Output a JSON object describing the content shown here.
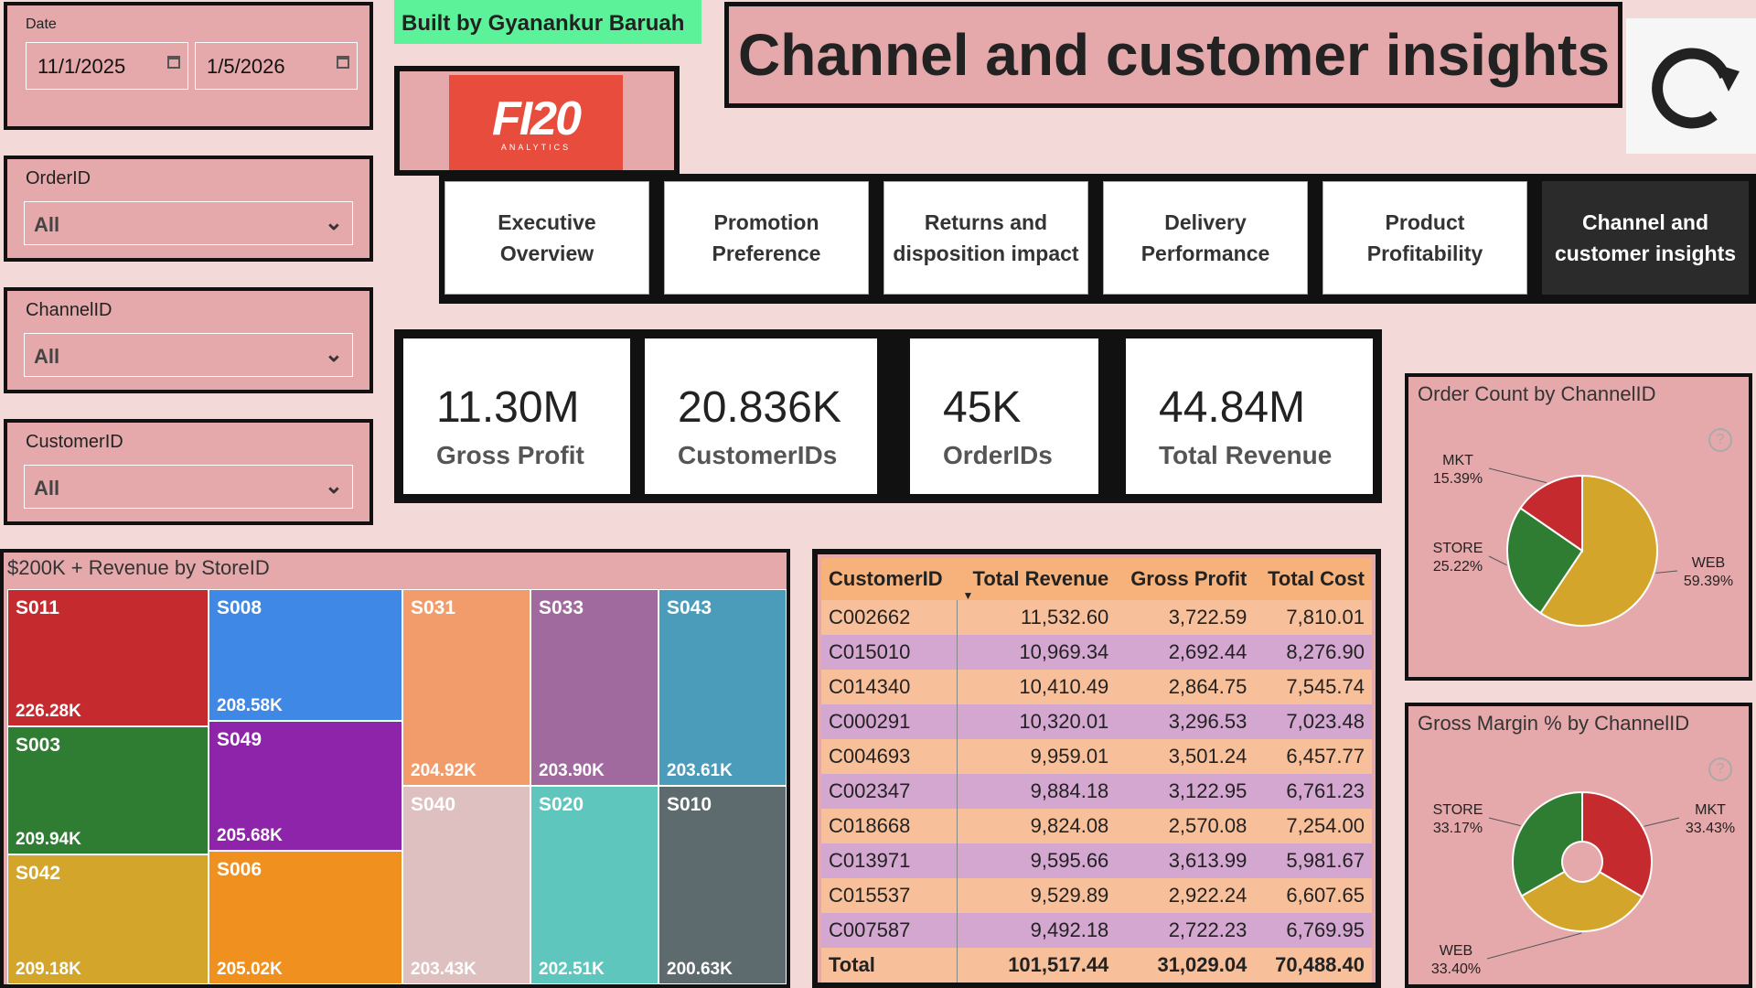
{
  "filters": {
    "date": {
      "label": "Date",
      "start": "11/1/2025",
      "end": "1/5/2026"
    },
    "order": {
      "label": "OrderID",
      "value": "All"
    },
    "channel": {
      "label": "ChannelID",
      "value": "All"
    },
    "customer": {
      "label": "CustomerID",
      "value": "All"
    }
  },
  "credit": "Built by Gyanankur Baruah",
  "logo": "FI20",
  "logo_sub": "ANALYTICS",
  "page_title": "Channel and customer insights",
  "nav": [
    {
      "label": "Executive Overview",
      "active": false
    },
    {
      "label": "Promotion Preference",
      "active": false
    },
    {
      "label": "Returns and disposition impact",
      "active": false
    },
    {
      "label": "Delivery Performance",
      "active": false
    },
    {
      "label": "Product Profitability",
      "active": false
    },
    {
      "label": "Channel and customer insights",
      "active": true
    }
  ],
  "kpis": [
    {
      "value": "11.30M",
      "label": "Gross Profit"
    },
    {
      "value": "20.836K",
      "label": "CustomerIDs"
    },
    {
      "value": "45K",
      "label": "OrderIDs"
    },
    {
      "value": "44.84M",
      "label": "Total Revenue"
    }
  ],
  "treemap": {
    "title": "$200K + Revenue by StoreID",
    "cells": [
      {
        "id": "S011",
        "val": "226.28K",
        "color": "#c52b2e"
      },
      {
        "id": "S003",
        "val": "209.94K",
        "color": "#2e7d32"
      },
      {
        "id": "S042",
        "val": "209.18K",
        "color": "#d4a52b"
      },
      {
        "id": "S008",
        "val": "208.58K",
        "color": "#3f88e5"
      },
      {
        "id": "S049",
        "val": "205.68K",
        "color": "#8e24aa"
      },
      {
        "id": "S006",
        "val": "205.02K",
        "color": "#f0901f"
      },
      {
        "id": "S031",
        "val": "204.92K",
        "color": "#f39c6b"
      },
      {
        "id": "S040",
        "val": "203.43K",
        "color": "#dec0c0"
      },
      {
        "id": "S033",
        "val": "203.90K",
        "color": "#a06a9e"
      },
      {
        "id": "S020",
        "val": "202.51K",
        "color": "#5fc6bd"
      },
      {
        "id": "S043",
        "val": "203.61K",
        "color": "#4a9cba"
      },
      {
        "id": "S010",
        "val": "200.63K",
        "color": "#5e6b6e"
      }
    ]
  },
  "table": {
    "headers": [
      "CustomerID",
      "Total Revenue",
      "Gross Profit",
      "Total Cost"
    ],
    "rows": [
      [
        "C002662",
        "11,532.60",
        "3,722.59",
        "7,810.01"
      ],
      [
        "C015010",
        "10,969.34",
        "2,692.44",
        "8,276.90"
      ],
      [
        "C014340",
        "10,410.49",
        "2,864.75",
        "7,545.74"
      ],
      [
        "C000291",
        "10,320.01",
        "3,296.53",
        "7,023.48"
      ],
      [
        "C004693",
        "9,959.01",
        "3,501.24",
        "6,457.77"
      ],
      [
        "C002347",
        "9,884.18",
        "3,122.95",
        "6,761.23"
      ],
      [
        "C018668",
        "9,824.08",
        "2,570.08",
        "7,254.00"
      ],
      [
        "C013971",
        "9,595.66",
        "3,613.99",
        "5,981.67"
      ],
      [
        "C015537",
        "9,529.89",
        "2,922.24",
        "6,607.65"
      ],
      [
        "C007587",
        "9,492.18",
        "2,722.23",
        "6,769.95"
      ]
    ],
    "total": [
      "Total",
      "101,517.44",
      "31,029.04",
      "70,488.40"
    ]
  },
  "chart_data": [
    {
      "type": "pie",
      "title": "Order Count by ChannelID",
      "categories": [
        "WEB",
        "STORE",
        "MKT"
      ],
      "values": [
        59.39,
        25.22,
        15.39
      ],
      "labels": [
        "59.39%",
        "25.22%",
        "15.39%"
      ],
      "colors": [
        "#d4a52b",
        "#2e7d32",
        "#c52b2e"
      ]
    },
    {
      "type": "pie",
      "title": "Gross Margin % by ChannelID",
      "categories": [
        "MKT",
        "WEB",
        "STORE"
      ],
      "values": [
        33.43,
        33.4,
        33.17
      ],
      "labels": [
        "33.43%",
        "33.40%",
        "33.17%"
      ],
      "colors": [
        "#c52b2e",
        "#d4a52b",
        "#2e7d32"
      ]
    }
  ]
}
